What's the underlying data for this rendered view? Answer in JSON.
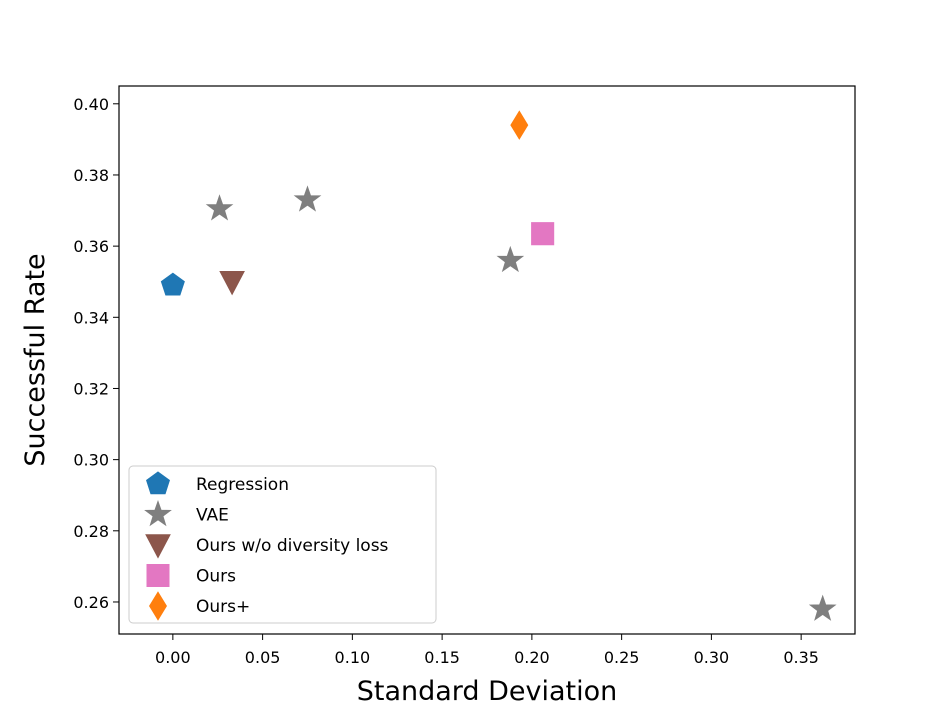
{
  "chart_data": {
    "type": "scatter",
    "title": "",
    "xlabel": "Standard Deviation",
    "ylabel": "Successful Rate",
    "xlim": [
      -0.03,
      0.38
    ],
    "ylim": [
      0.251,
      0.405
    ],
    "xticks": [
      0.0,
      0.05,
      0.1,
      0.15,
      0.2,
      0.25,
      0.3,
      0.35
    ],
    "xtick_labels": [
      "0.00",
      "0.05",
      "0.10",
      "0.15",
      "0.20",
      "0.25",
      "0.30",
      "0.35"
    ],
    "yticks": [
      0.26,
      0.28,
      0.3,
      0.32,
      0.34,
      0.36,
      0.38,
      0.4
    ],
    "ytick_labels": [
      "0.26",
      "0.28",
      "0.30",
      "0.32",
      "0.34",
      "0.36",
      "0.38",
      "0.40"
    ],
    "grid": false,
    "legend_position": "lower-left",
    "series": [
      {
        "name": "Regression",
        "marker": "pentagon",
        "color": "#1f77b4",
        "points": [
          {
            "x": 0.0,
            "y": 0.349
          }
        ]
      },
      {
        "name": "VAE",
        "marker": "star",
        "color": "#7f7f7f",
        "points": [
          {
            "x": 0.026,
            "y": 0.3705
          },
          {
            "x": 0.075,
            "y": 0.373
          },
          {
            "x": 0.188,
            "y": 0.356
          },
          {
            "x": 0.362,
            "y": 0.258
          }
        ]
      },
      {
        "name": "Ours w/o diversity loss",
        "marker": "triangle-down",
        "color": "#8c564b",
        "points": [
          {
            "x": 0.033,
            "y": 0.35
          }
        ]
      },
      {
        "name": "Ours",
        "marker": "square",
        "color": "#e377c2",
        "points": [
          {
            "x": 0.206,
            "y": 0.3635
          }
        ]
      },
      {
        "name": "Ours+",
        "marker": "diamond",
        "color": "#ff7f0e",
        "points": [
          {
            "x": 0.193,
            "y": 0.394
          }
        ]
      }
    ]
  }
}
